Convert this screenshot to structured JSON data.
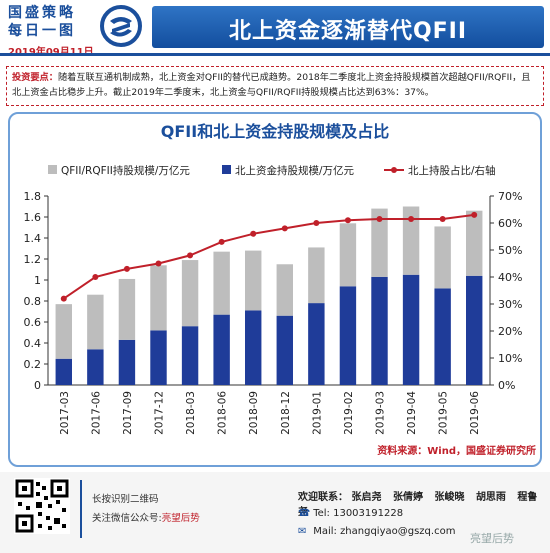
{
  "header": {
    "brand_line1": "国盛策略",
    "brand_line2": "每日一图",
    "date": "2019年09月11日",
    "title": "北上资金逐渐替代QFII"
  },
  "key_points": {
    "label": "投资要点：",
    "text": "随着互联互通机制成熟，北上资金对QFII的替代已成趋势。2018年二季度北上资金持股规模首次超越QFII/RQFII，且北上资金占比稳步上升。截止2019年二季度末，北上资金与QFII/RQFII持股规模占比达到63%：37%。"
  },
  "chart_data": {
    "type": "bar",
    "title": "QFII和北上资金持股规模及占比",
    "categories": [
      "2017-03",
      "2017-06",
      "2017-09",
      "2017-12",
      "2018-03",
      "2018-06",
      "2018-09",
      "2018-12",
      "2019-01",
      "2019-02",
      "2019-03",
      "2019-04",
      "2019-05",
      "2019-06"
    ],
    "series": [
      {
        "name": "QFII/RQFII持股规模/万亿元",
        "type": "bar",
        "axis": "left",
        "color": "#bdbdbd",
        "values": [
          0.52,
          0.52,
          0.58,
          0.62,
          0.63,
          0.6,
          0.57,
          0.49,
          0.53,
          0.6,
          0.65,
          0.65,
          0.59,
          0.62
        ]
      },
      {
        "name": "北上资金持股规模/万亿元",
        "type": "bar",
        "axis": "left",
        "color": "#1f3c99",
        "values": [
          0.25,
          0.34,
          0.43,
          0.52,
          0.56,
          0.67,
          0.71,
          0.66,
          0.78,
          0.94,
          1.03,
          1.05,
          0.92,
          1.04
        ]
      },
      {
        "name": "北上持股占比/右轴",
        "type": "line",
        "axis": "right",
        "color": "#c0202a",
        "values": [
          32,
          40,
          43,
          45,
          48,
          53,
          56,
          58,
          60,
          61,
          61.5,
          61.5,
          61.5,
          63
        ]
      }
    ],
    "y_left": {
      "min": 0,
      "max": 1.8,
      "ticks": [
        "0",
        "0.2",
        "0.4",
        "0.6",
        "0.8",
        "1",
        "1.2",
        "1.4",
        "1.6",
        "1.8"
      ]
    },
    "y_right": {
      "min": 0,
      "max": 70,
      "ticks": [
        "0%",
        "10%",
        "20%",
        "30%",
        "40%",
        "50%",
        "60%",
        "70%"
      ]
    },
    "grid": false,
    "legend_position": "top"
  },
  "source": "资料来源：Wind，国盛证券研究所",
  "footer": {
    "qr_note1": "长按识别二维码",
    "qr_note2_prefix": "关注微信公众号:",
    "qr_account": "亮望后势",
    "contacts_label": "欢迎联系：",
    "contacts": [
      "张启尧",
      "张倩婷",
      "张峻晓",
      "胡思雨",
      "程鲁尧"
    ],
    "tel_label": "Tel:",
    "tel": "13003191228",
    "mail_label": "Mail:",
    "mail": "zhangqiyao@gszq.com",
    "watermark": "亮望后势"
  }
}
